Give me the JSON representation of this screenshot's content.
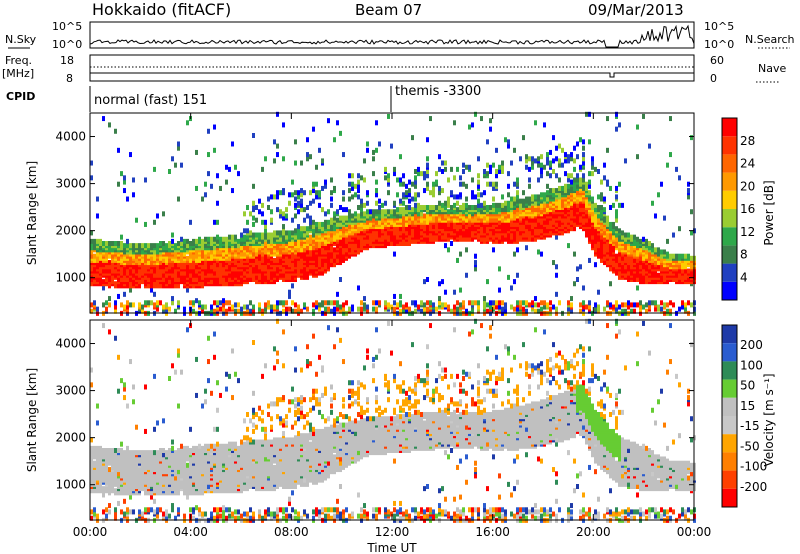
{
  "header": {
    "station": "Hokkaido (fitACF)",
    "beam": "Beam 07",
    "date": "09/Mar/2013"
  },
  "top_panels": {
    "nsky_label": "N.Sky",
    "nsky_ticks": [
      "10^5",
      "10^0"
    ],
    "nsearch_label": "N.Search",
    "nsearch_ticks": [
      "10^5",
      "10^0"
    ],
    "freq_label": "Freq.",
    "freq_unit": "[MHz]",
    "freq_ticks": [
      "18",
      "8"
    ],
    "nave_label": "Nave",
    "nave_ticks": [
      "60",
      "0"
    ],
    "cpid_label": "CPID",
    "cpid_entries": [
      "normal (fast) 151",
      "themis -3300"
    ]
  },
  "colors": {
    "power_scale": [
      "#0000ff",
      "#2040c0",
      "#3a7f4a",
      "#2ea84a",
      "#9acd32",
      "#ffcc00",
      "#ff9900",
      "#ff6600",
      "#ff3300",
      "#ff0000"
    ],
    "velocity_scale": [
      "#1e3aa8",
      "#2a5cd0",
      "#2e8b57",
      "#66cc33",
      "#c0c0c0",
      "#c8c8c8",
      "#ffa500",
      "#ff7f00",
      "#ff4000",
      "#ff0000"
    ],
    "ground_scatter": "#c0c0c0"
  },
  "chart_data": [
    {
      "type": "heatmap",
      "name": "power",
      "ylabel": "Slant Range [km]",
      "yticks": [
        "1000",
        "2000",
        "3000",
        "4000"
      ],
      "ylim": [
        250,
        4500
      ],
      "xlim_hours": [
        0,
        24
      ],
      "colorbar_label": "Power [dB]",
      "colorbar_ticks": [
        "4",
        "8",
        "12",
        "16",
        "20",
        "24",
        "28"
      ],
      "colorbar_range": [
        0,
        32
      ],
      "main_band_profile": {
        "hours": [
          0,
          2,
          4,
          6,
          8,
          9,
          10,
          11,
          12,
          13,
          14,
          15,
          16,
          17,
          18,
          19,
          19.5,
          20,
          21,
          22,
          23,
          24
        ],
        "lower_km": [
          850,
          800,
          820,
          880,
          950,
          1050,
          1350,
          1650,
          1700,
          1750,
          1800,
          1800,
          1750,
          1780,
          1850,
          2000,
          2100,
          1500,
          1000,
          900,
          900,
          900
        ],
        "upper_km": [
          1800,
          1700,
          1800,
          1900,
          2000,
          2150,
          2300,
          2400,
          2450,
          2500,
          2550,
          2500,
          2550,
          2650,
          2800,
          3000,
          3150,
          2600,
          2000,
          1800,
          1500,
          1500
        ]
      }
    },
    {
      "type": "heatmap",
      "name": "velocity",
      "ylabel": "Slant Range [km]",
      "yticks": [
        "1000",
        "2000",
        "3000",
        "4000"
      ],
      "ylim": [
        250,
        4500
      ],
      "xlabel": "Time UT",
      "xticks": [
        "00:00",
        "04:00",
        "08:00",
        "12:00",
        "16:00",
        "20:00",
        "00:00"
      ],
      "xlim_hours": [
        0,
        24
      ],
      "colorbar_label": "Velocity [m s⁻¹]",
      "colorbar_ticks": [
        "200",
        "100",
        "50",
        "15",
        "-15",
        "-50",
        "-100",
        "-200"
      ],
      "colorbar_range": [
        -250,
        250
      ]
    }
  ]
}
